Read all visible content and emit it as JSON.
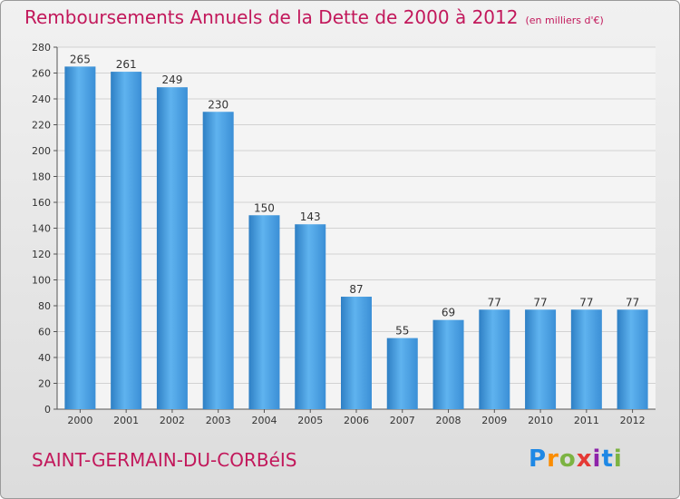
{
  "title": "Remboursements Annuels de la Dette de 2000 à 2012",
  "subtitle": "(en milliers d'€)",
  "town": "SAINT-GERMAIN-DU-CORBéIS",
  "logo": "Proxiti",
  "colors": {
    "bar": "#4a9fe0",
    "title": "#c2185b"
  },
  "chart_data": {
    "type": "bar",
    "categories": [
      "2000",
      "2001",
      "2002",
      "2003",
      "2004",
      "2005",
      "2006",
      "2007",
      "2008",
      "2009",
      "2010",
      "2011",
      "2012"
    ],
    "values": [
      265,
      261,
      249,
      230,
      150,
      143,
      87,
      55,
      69,
      77,
      77,
      77,
      77
    ],
    "ylim": [
      0,
      280
    ],
    "yticks": [
      0,
      20,
      40,
      60,
      80,
      100,
      120,
      140,
      160,
      180,
      200,
      220,
      240,
      260,
      280
    ],
    "grid": true
  }
}
